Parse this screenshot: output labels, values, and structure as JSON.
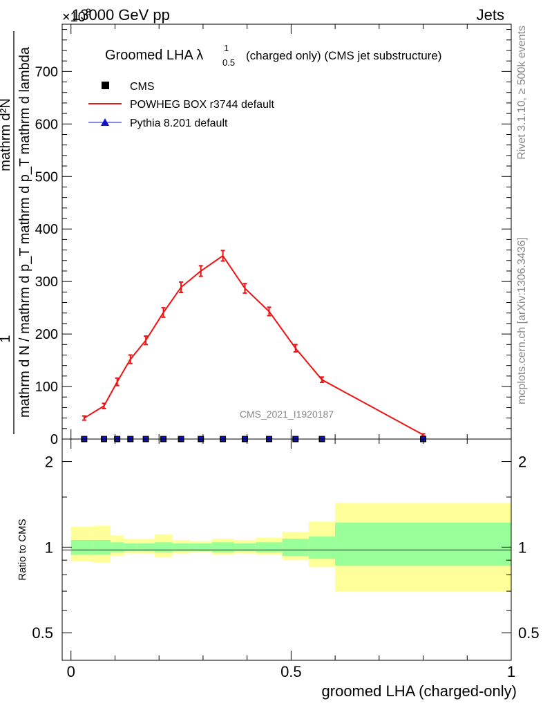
{
  "header": {
    "energy_label": "13000 GeV pp",
    "process_label": "Jets",
    "exponent_label": "×10",
    "exponent_power": "3"
  },
  "side_labels": {
    "rivet": "Rivet 3.1.10, ≥ 500k events",
    "mcplots": "mcplots.cern.ch [arXiv:1306.3436]"
  },
  "watermark": "CMS_2021_I1920187",
  "chart_data": [
    {
      "type": "line",
      "title_main": "Groomed LHA λ",
      "title_sub": "0.5",
      "title_sup": "1",
      "title_rest": "(charged only) (CMS jet substructure)",
      "ylabel_num": "1",
      "ylabel_num_right": "mathrm d²N",
      "ylabel_den": "mathrm d N / mathrm d p_T mathrm d p_T mathrm d lambda",
      "xlim": [
        -0.02,
        1.0
      ],
      "ylim": [
        0,
        790
      ],
      "yticks": [
        0,
        100,
        200,
        300,
        400,
        500,
        600,
        700
      ],
      "legend": [
        "CMS",
        "POWHEG BOX r3744 default",
        "Pythia 8.201 default"
      ],
      "colors": {
        "data": "#000000",
        "powheg": "#ee1111",
        "pythia": "#1111cc"
      },
      "series": [
        {
          "name": "POWHEG BOX r3744 default",
          "x": [
            0.03,
            0.075,
            0.105,
            0.135,
            0.17,
            0.21,
            0.25,
            0.295,
            0.345,
            0.395,
            0.45,
            0.51,
            0.57,
            0.8
          ],
          "values": [
            40,
            63,
            109,
            152,
            188,
            241,
            289,
            320,
            349,
            287,
            243,
            173,
            113,
            8
          ],
          "errors": [
            4,
            5,
            7,
            8,
            8,
            9,
            10,
            10,
            10,
            9,
            8,
            7,
            5,
            2
          ]
        },
        {
          "name": "CMS",
          "x": [
            0.03,
            0.075,
            0.105,
            0.135,
            0.17,
            0.21,
            0.25,
            0.295,
            0.345,
            0.395,
            0.45,
            0.51,
            0.57,
            0.8
          ],
          "values": [
            0,
            0,
            0,
            0,
            0,
            0,
            0,
            0,
            0,
            0,
            0,
            0,
            0,
            0
          ]
        }
      ]
    },
    {
      "type": "area",
      "ylabel": "Ratio to CMS",
      "xlabel": "groomed LHA (charged-only)",
      "xticks": [
        "0",
        "0.5",
        "1"
      ],
      "ytick_labels": [
        "0.5",
        "1",
        "2"
      ],
      "yticks": [
        0.5,
        1,
        2
      ],
      "ylim": [
        0.4,
        2.4
      ],
      "log_scale": true,
      "bin_edges": [
        0,
        0.05,
        0.09,
        0.12,
        0.15,
        0.19,
        0.23,
        0.27,
        0.32,
        0.37,
        0.42,
        0.48,
        0.54,
        0.6,
        1.0
      ],
      "band_inner": [
        [
          0.94,
          1.06
        ],
        [
          0.94,
          1.06
        ],
        [
          0.96,
          1.04
        ],
        [
          0.97,
          1.03
        ],
        [
          0.97,
          1.03
        ],
        [
          0.96,
          1.04
        ],
        [
          0.97,
          1.03
        ],
        [
          0.97,
          1.03
        ],
        [
          0.96,
          1.04
        ],
        [
          0.97,
          1.03
        ],
        [
          0.96,
          1.04
        ],
        [
          0.93,
          1.07
        ],
        [
          0.91,
          1.09
        ],
        [
          0.86,
          1.22
        ]
      ],
      "band_outer": [
        [
          0.89,
          1.18
        ],
        [
          0.88,
          1.19
        ],
        [
          0.93,
          1.1
        ],
        [
          0.95,
          1.07
        ],
        [
          0.95,
          1.07
        ],
        [
          0.92,
          1.11
        ],
        [
          0.95,
          1.06
        ],
        [
          0.96,
          1.05
        ],
        [
          0.94,
          1.07
        ],
        [
          0.95,
          1.06
        ],
        [
          0.94,
          1.08
        ],
        [
          0.9,
          1.13
        ],
        [
          0.85,
          1.23
        ],
        [
          0.7,
          1.43
        ]
      ],
      "colors": {
        "inner": "#99ff99",
        "outer": "#ffff99"
      }
    }
  ]
}
